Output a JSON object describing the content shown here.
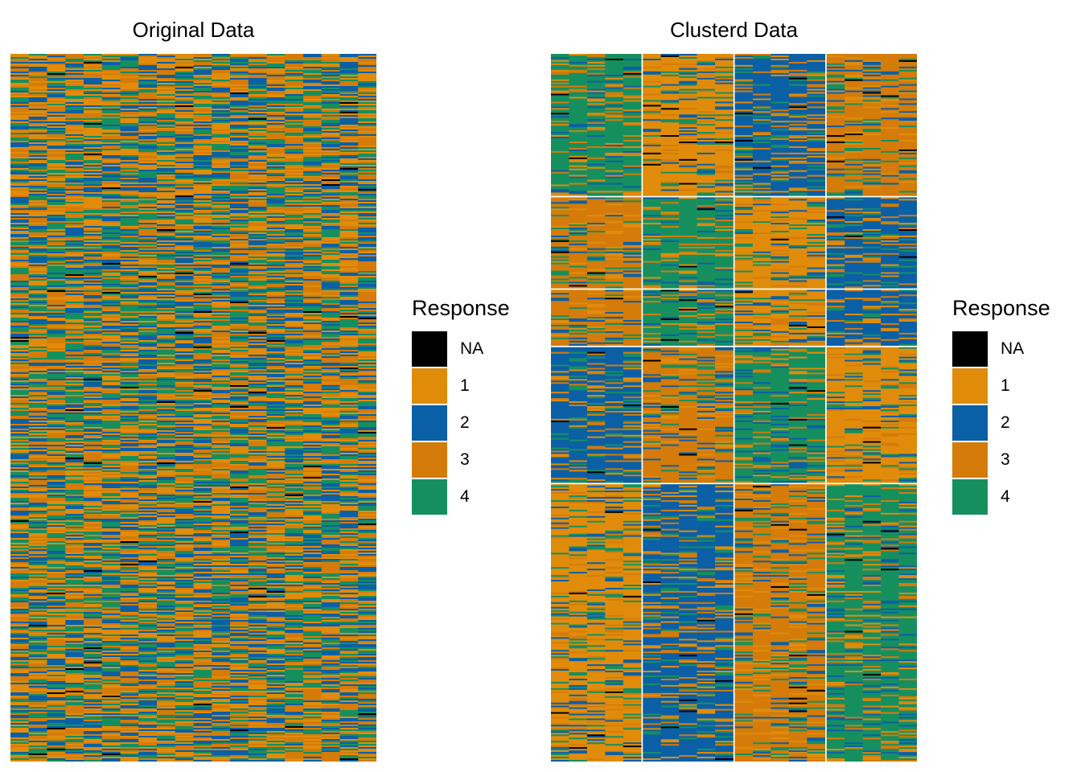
{
  "chart_data": [
    {
      "type": "heatmap",
      "title": "Original Data",
      "rows": 440,
      "cols": 20,
      "seed": 17,
      "legend_title": "Response",
      "legend_position": "right",
      "categories": [
        "NA",
        "1",
        "2",
        "3",
        "4"
      ],
      "colors": {
        "NA": "#000000",
        "1": "#E08C0A",
        "2": "#0B5FA5",
        "3": "#D47B0A",
        "4": "#168F5F"
      },
      "na_rate": 0.01
    },
    {
      "type": "heatmap",
      "title": "Clusterd Data",
      "rows": 440,
      "cols": 20,
      "seed": 91,
      "legend_title": "Response",
      "legend_position": "right",
      "categories": [
        "NA",
        "1",
        "2",
        "3",
        "4"
      ],
      "colors": {
        "NA": "#000000",
        "1": "#E08C0A",
        "2": "#0B5FA5",
        "3": "#D47B0A",
        "4": "#168F5F"
      },
      "na_rate": 0.01,
      "row_clusters": [
        89,
        57,
        35,
        85,
        174
      ],
      "col_clusters": [
        5,
        5,
        5,
        5
      ],
      "dominant_response": [
        [
          "4",
          "1",
          "2",
          "3"
        ],
        [
          "3",
          "4",
          "1",
          "2"
        ],
        [
          "3",
          "4",
          "1",
          "2"
        ],
        [
          "2",
          "3",
          "4",
          "1"
        ],
        [
          "1",
          "2",
          "3",
          "4"
        ]
      ],
      "dominance": 0.55
    }
  ],
  "legend": {
    "title": "Response",
    "items": [
      {
        "label": "NA",
        "color": "#000000"
      },
      {
        "label": "1",
        "color": "#E08C0A"
      },
      {
        "label": "2",
        "color": "#0B5FA5"
      },
      {
        "label": "3",
        "color": "#D47B0A"
      },
      {
        "label": "4",
        "color": "#168F5F"
      }
    ]
  }
}
